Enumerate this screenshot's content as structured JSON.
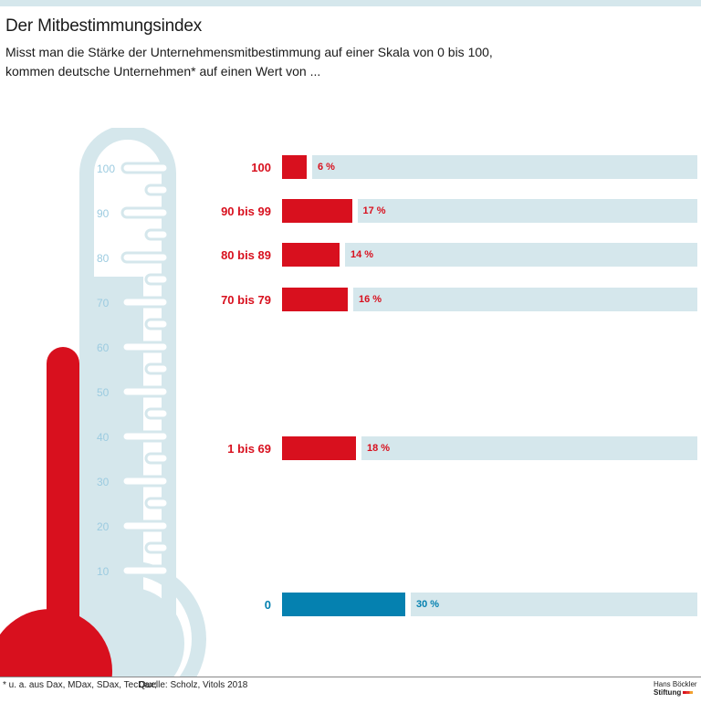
{
  "header": {
    "title": "Der Mitbestimmungsindex",
    "subtitle_line1": "Misst man die Stärke der Unternehmensmitbestimmung auf einer Skala von 0 bis 100,",
    "subtitle_line2": "kommen deutsche Unternehmen* auf einen Wert von ..."
  },
  "thermometer": {
    "scale_labels": [
      "100",
      "90",
      "80",
      "70",
      "60",
      "50",
      "40",
      "30",
      "20",
      "10"
    ],
    "level": 60
  },
  "chart_data": {
    "type": "bar",
    "orientation": "horizontal",
    "categories": [
      "100",
      "90 bis 99",
      "80 bis 89",
      "70 bis 79",
      "1 bis 69",
      "0"
    ],
    "values": [
      6,
      17,
      14,
      16,
      18,
      30
    ],
    "value_labels": [
      "6 %",
      "17 %",
      "14 %",
      "16 %",
      "18 %",
      "30 %"
    ],
    "xlim": [
      0,
      100
    ],
    "unit": "%",
    "colors": [
      "#d8101e",
      "#d8101e",
      "#d8101e",
      "#d8101e",
      "#d8101e",
      "#0581b0"
    ],
    "track_color": "#d5e7ec"
  },
  "footer": {
    "footnote": "* u. a. aus Dax, MDax, SDax, TecDax;",
    "source": "Quelle: Scholz, Vitols 2018",
    "logo_line1": "Hans Böckler",
    "logo_line2": "Stiftung"
  }
}
